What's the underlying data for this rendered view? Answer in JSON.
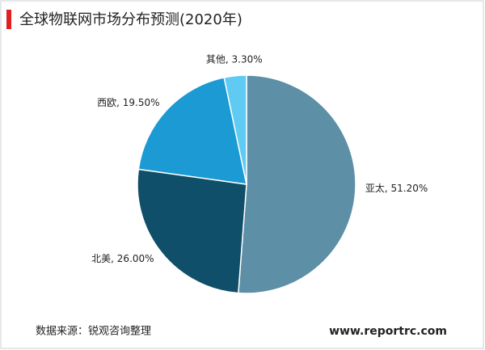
{
  "chart_data": {
    "type": "pie",
    "title": "全球物联网市场分布预测(2020年)",
    "labels": [
      "亚太, 51.20%",
      "北美, 26.00%",
      "西欧, 19.50%",
      "其他, 3.30%"
    ],
    "values": [
      51.2,
      26.0,
      19.5,
      3.3
    ],
    "colors": [
      "#5d8fa7",
      "#0f4f69",
      "#1b9ad4",
      "#5fcbf2"
    ],
    "source": "数据来源：锐观咨询整理",
    "website": "www.reportrc.com"
  }
}
